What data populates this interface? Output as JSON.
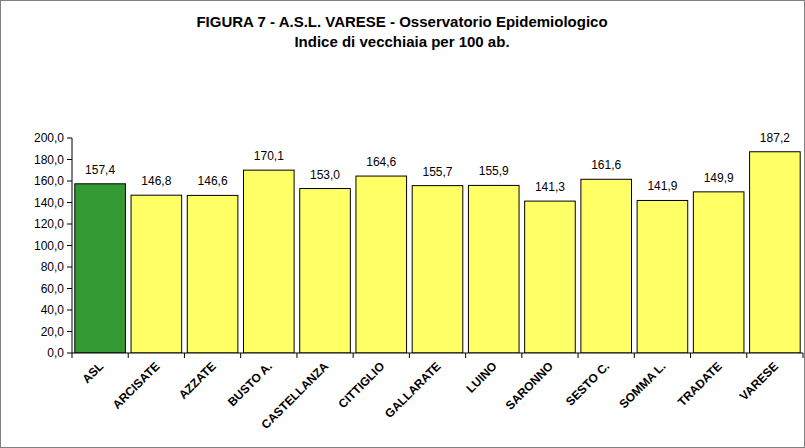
{
  "chart_data": {
    "type": "bar",
    "title": "FIGURA 7 -  A.S.L.  VARESE - Osservatorio Epidemiologico",
    "subtitle": "Indice di vecchiaia per 100 ab.",
    "categories": [
      "ASL",
      "ARCISATE",
      "AZZATE",
      "BUSTO A.",
      "CASTELLANZA",
      "CITTIGLIO",
      "GALLARATE",
      "LUINO",
      "SARONNO",
      "SESTO C.",
      "SOMMA L.",
      "TRADATE",
      "VARESE"
    ],
    "values": [
      157.4,
      146.8,
      146.6,
      170.1,
      153.0,
      164.6,
      155.7,
      155.9,
      141.3,
      161.6,
      141.9,
      149.9,
      187.2
    ],
    "value_labels": [
      "157,4",
      "146,8",
      "146,6",
      "170,1",
      "153,0",
      "164,6",
      "155,7",
      "155,9",
      "141,3",
      "161,6",
      "141,9",
      "149,9",
      "187,2"
    ],
    "colors": [
      "#339933",
      "#ffff66",
      "#ffff66",
      "#ffff66",
      "#ffff66",
      "#ffff66",
      "#ffff66",
      "#ffff66",
      "#ffff66",
      "#ffff66",
      "#ffff66",
      "#ffff66",
      "#ffff66"
    ],
    "data_labels": true,
    "grid": false,
    "ylim": [
      0,
      200
    ],
    "yticks": [
      {
        "value": 0,
        "label": "0,0"
      },
      {
        "value": 20,
        "label": "20,0"
      },
      {
        "value": 40,
        "label": "40,0"
      },
      {
        "value": 60,
        "label": "60,0"
      },
      {
        "value": 80,
        "label": "80,0"
      },
      {
        "value": 100,
        "label": "100,0"
      },
      {
        "value": 120,
        "label": "120,0"
      },
      {
        "value": 140,
        "label": "140,0"
      },
      {
        "value": 160,
        "label": "160,0"
      },
      {
        "value": 180,
        "label": "180,0"
      },
      {
        "value": 200,
        "label": "200,0"
      }
    ]
  }
}
